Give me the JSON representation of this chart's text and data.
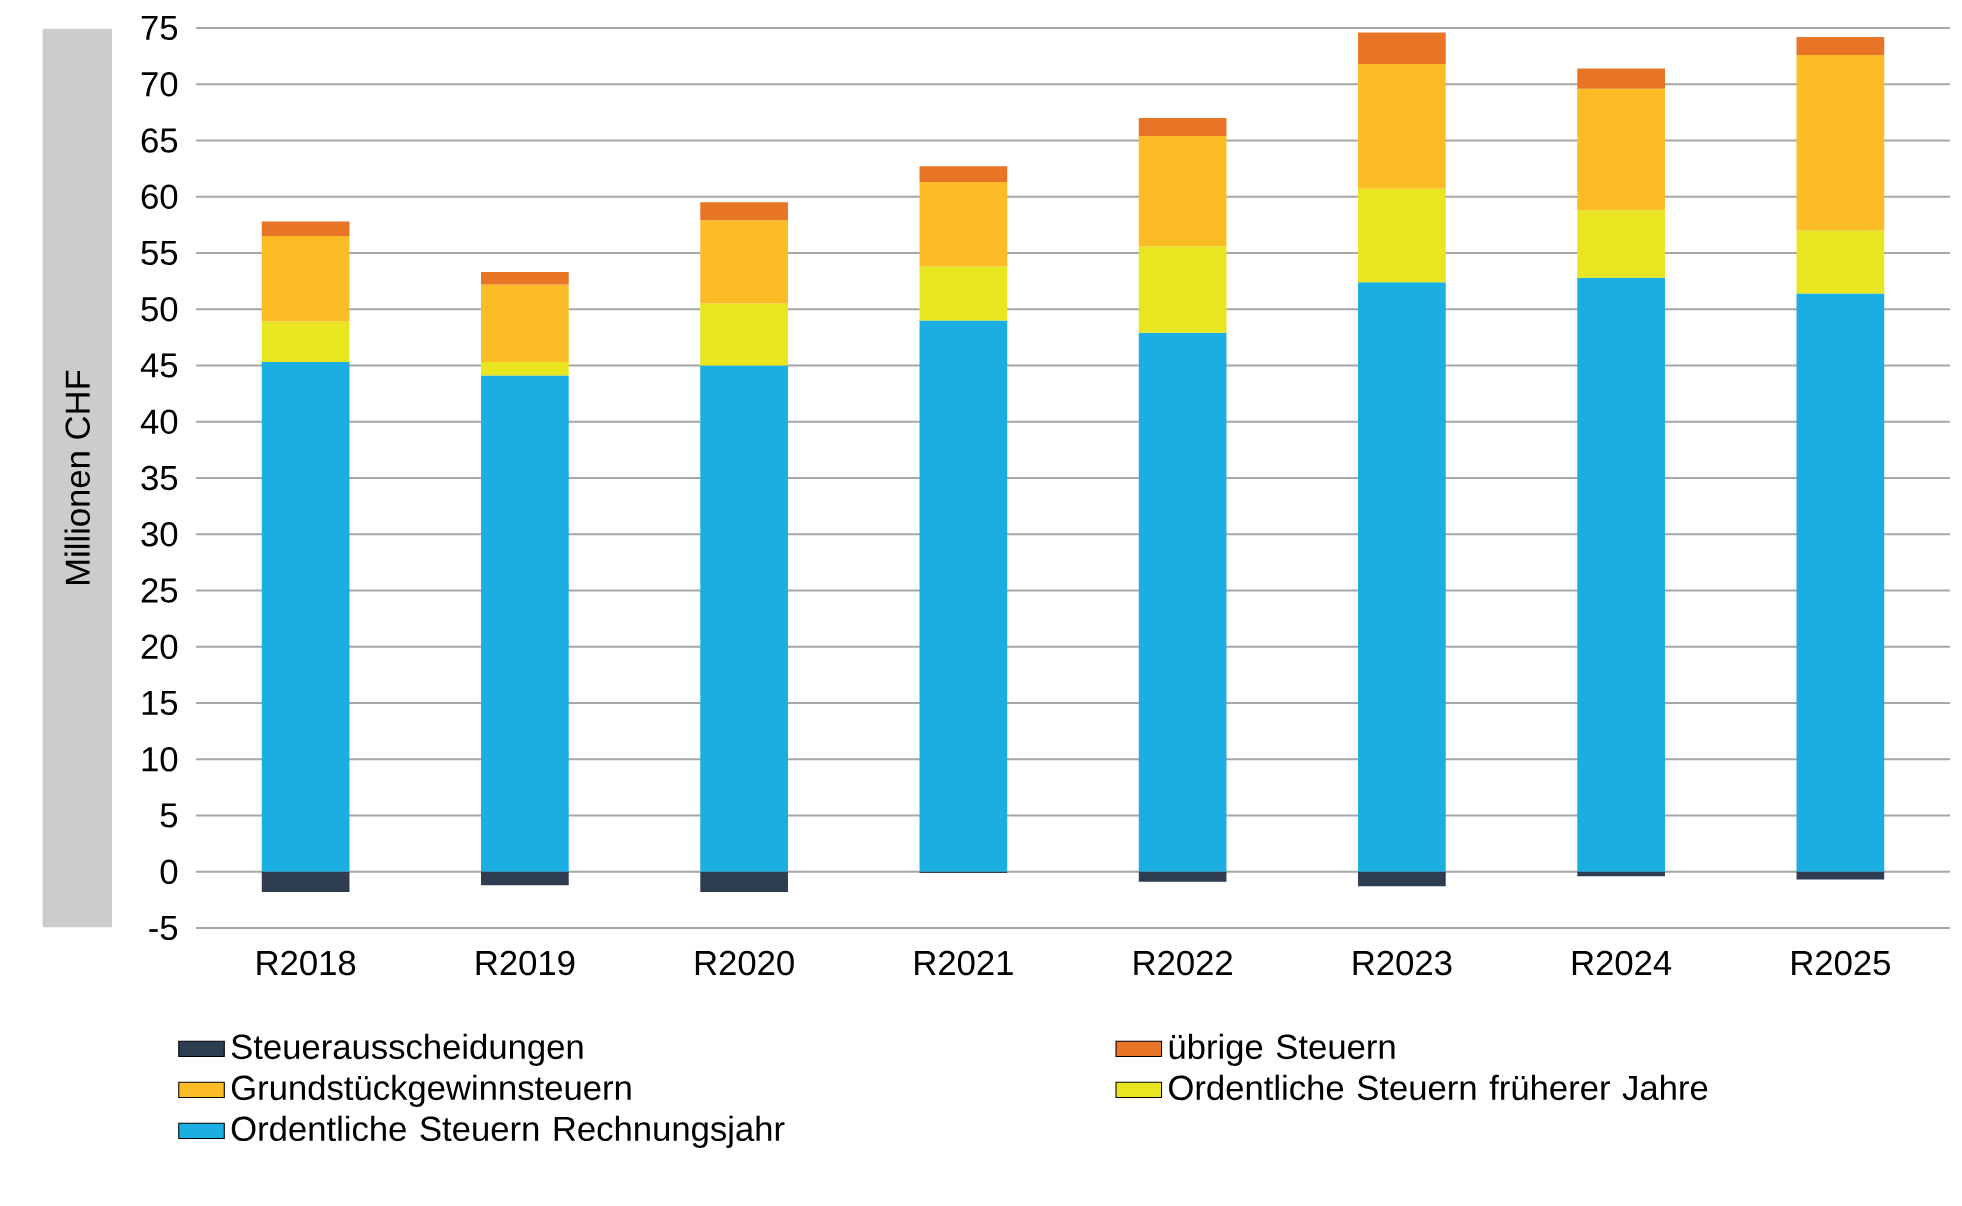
{
  "chart_data": {
    "type": "bar",
    "stacked": true,
    "ylabel": "Millionen CHF",
    "categories": [
      "R2018",
      "R2019",
      "R2020",
      "R2021",
      "R2022",
      "R2023",
      "R2024",
      "R2025"
    ],
    "series": [
      {
        "name": "Ordentliche Steuern Rechnungsjahr",
        "color": "#1aaee3",
        "values": [
          45.3,
          44.1,
          45.0,
          49.0,
          47.9,
          52.4,
          52.8,
          51.4
        ]
      },
      {
        "name": "Ordentliche Steuern früherer Jahre",
        "color": "#e8e620",
        "values": [
          3.6,
          1.2,
          5.5,
          4.8,
          7.7,
          8.3,
          6.0,
          5.6
        ]
      },
      {
        "name": "Grundstückgewinnsteuern",
        "color": "#fbbc26",
        "values": [
          7.6,
          6.9,
          7.4,
          7.5,
          9.8,
          11.1,
          10.8,
          15.6
        ]
      },
      {
        "name": "übrige Steuern",
        "color": "#e87425",
        "values": [
          1.3,
          1.1,
          1.6,
          1.4,
          1.6,
          2.8,
          1.8,
          1.6
        ]
      },
      {
        "name": "Steuerausscheidungen",
        "color": "#2e3e50",
        "values": [
          -1.8,
          -1.2,
          -1.8,
          -0.1,
          -0.9,
          -1.3,
          -0.4,
          -0.7
        ]
      }
    ],
    "ylim": [
      -5,
      75
    ],
    "yticks": [
      -5,
      0,
      5,
      10,
      15,
      20,
      25,
      30,
      35,
      40,
      45,
      50,
      55,
      60,
      65,
      70,
      75
    ],
    "grid": "y",
    "legend": "bottom"
  }
}
